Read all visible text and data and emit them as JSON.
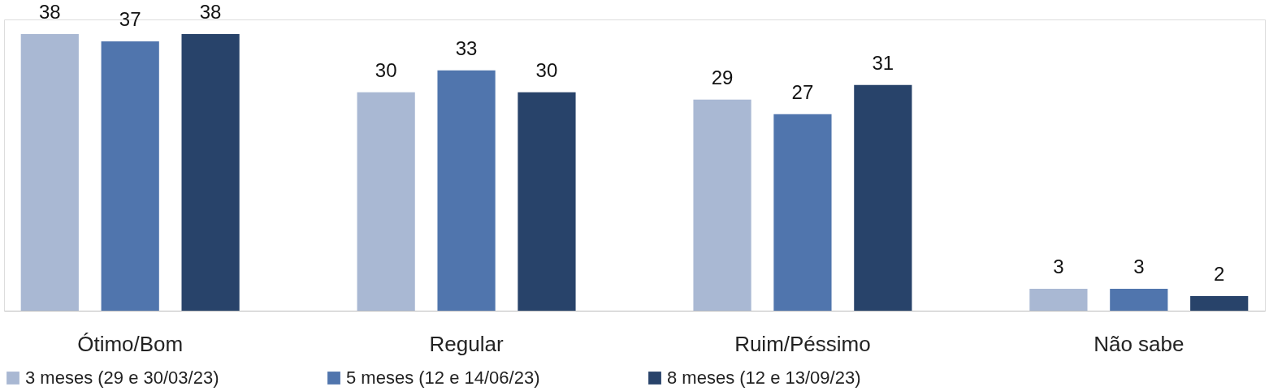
{
  "chart_data": {
    "type": "bar",
    "categories": [
      "Ótimo/Bom",
      "Regular",
      "Ruim/Péssimo",
      "Não sabe"
    ],
    "series": [
      {
        "name": "3 meses (29 e 30/03/23)",
        "color": "#a9b8d3",
        "values": [
          38,
          30,
          29,
          3
        ]
      },
      {
        "name": "5 meses (12 e 14/06/23)",
        "color": "#5075ad",
        "values": [
          37,
          33,
          27,
          3
        ]
      },
      {
        "name": "8 meses (12 e 13/09/23)",
        "color": "#28436a",
        "values": [
          38,
          30,
          31,
          2
        ]
      }
    ],
    "data_labels": true,
    "legend": "bottom",
    "grid": false
  }
}
